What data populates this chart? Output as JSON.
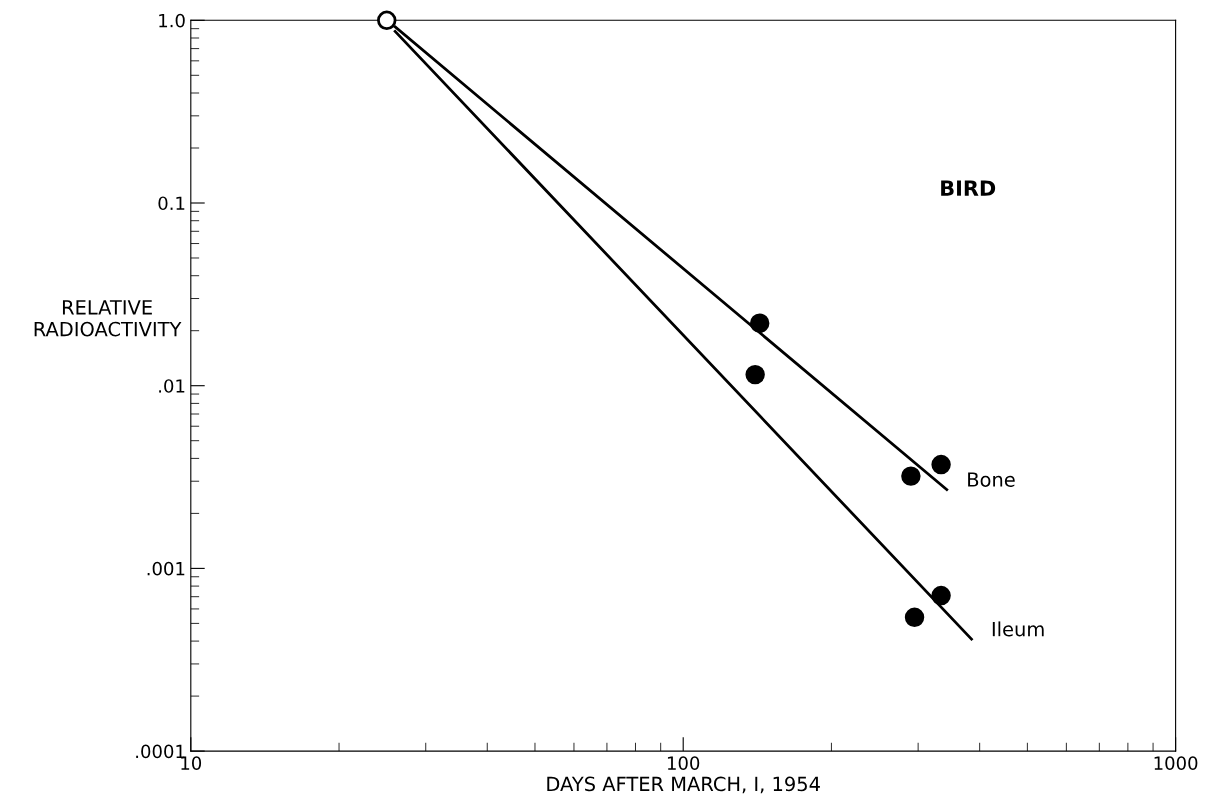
{
  "chart_data": {
    "type": "scatter",
    "xlabel": "DAYS AFTER MARCH, I, 1954",
    "ylabel": "RELATIVE\nRADIOACTIVITY",
    "log": "xy",
    "xlim": [
      10,
      1000
    ],
    "xticks": [
      10,
      100,
      1000
    ],
    "ylim": [
      0.0001,
      1
    ],
    "yticks": [
      {
        "value": 1,
        "label": "1.0"
      },
      {
        "value": 0.1,
        "label": "0.1"
      },
      {
        "value": 0.01,
        "label": ".01"
      },
      {
        "value": 0.001,
        "label": ".001"
      },
      {
        "value": 0.0001,
        "label": ".0001"
      }
    ],
    "grid": false,
    "legend": false,
    "marker": "circle",
    "series": [
      {
        "color": "#ffffff",
        "x": [
          25
        ],
        "values": [
          1.0
        ]
      },
      {
        "type": "scatter",
        "color": "#000000",
        "x": [
          143,
          290,
          334
        ],
        "values": [
          0.022,
          0.0032,
          0.0037
        ]
      },
      {
        "type": "scatter",
        "color": "#000000",
        "x": [
          140,
          295,
          334
        ],
        "values": [
          0.0115,
          0.00054,
          0.00071
        ]
      },
      {
        "type": "line",
        "color": "#000000",
        "marker": "none",
        "x": [
          26,
          343
        ],
        "values": [
          0.92,
          0.0027
        ]
      },
      {
        "type": "line",
        "color": "#000000",
        "marker": "none",
        "x": [
          26,
          385
        ],
        "values": [
          0.87,
          0.00041
        ]
      }
    ],
    "annotations": [
      "BIRD",
      "Bone",
      "Ileum"
    ]
  }
}
